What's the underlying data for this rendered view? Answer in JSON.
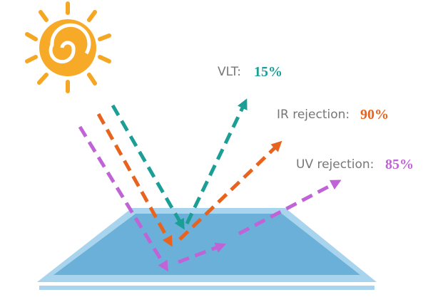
{
  "labels": [
    {
      "label": "VLT:",
      "value": "15%"
    },
    {
      "label": "IR rejection:",
      "value": "90%"
    },
    {
      "label": "UV rejection:",
      "value": "85%"
    }
  ]
}
